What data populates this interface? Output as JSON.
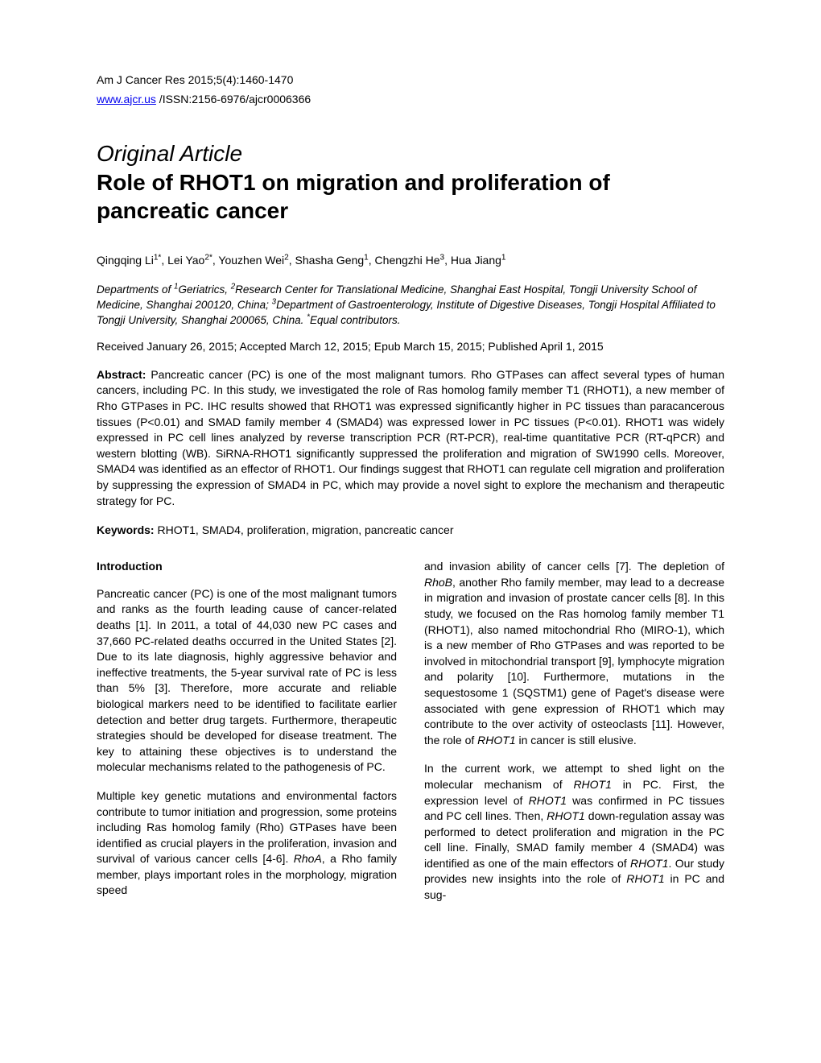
{
  "header": {
    "citation": "Am J Cancer Res 2015;5(4):1460-1470",
    "link_text": "www.ajcr.us",
    "link_suffix": " /ISSN:2156-6976/ajcr0006366"
  },
  "article": {
    "type": "Original Article",
    "title": "Role of RHOT1 on migration and proliferation of pancreatic cancer"
  },
  "affiliations": {
    "text_prefix": "Departments of ",
    "sup1": "1",
    "dept1": "Geriatrics, ",
    "sup2": "2",
    "dept2": "Research Center for Translational Medicine, Shanghai East Hospital, Tongji University School of Medicine, Shanghai 200120, China; ",
    "sup3": "3",
    "dept3": "Department of Gastroenterology, Institute of Digestive Diseases, Tongji Hospital Affiliated to Tongji University, Shanghai 200065, China. ",
    "sup_star": "*",
    "equal": "Equal contributors."
  },
  "dates": "Received January 26, 2015; Accepted March 12, 2015; Epub March 15, 2015; Published April 1, 2015",
  "abstract": {
    "label": "Abstract:",
    "text": " Pancreatic cancer (PC) is one of the most malignant tumors. Rho GTPases can affect several types of human cancers, including PC. In this study, we investigated the role of Ras homolog family member T1 (RHOT1), a new member of Rho GTPases in PC. IHC results showed that RHOT1 was expressed significantly higher in PC tissues than paracancerous tissues (P<0.01) and SMAD family member 4 (SMAD4) was expressed lower in PC tissues (P<0.01). RHOT1 was widely expressed in PC cell lines analyzed by reverse transcription PCR (RT-PCR), real-time quantitative PCR (RT-qPCR) and western blotting (WB). SiRNA-RHOT1 significantly suppressed the proliferation and migration of SW1990 cells. Moreover, SMAD4 was identified as an effector of RHOT1. Our findings suggest that RHOT1 can regulate cell migration and proliferation by suppressing the expression of SMAD4 in PC, which may provide a novel sight to explore the mechanism and therapeutic strategy for PC."
  },
  "keywords": {
    "label": "Keywords:",
    "text": " RHOT1, SMAD4, proliferation, migration, pancreatic cancer"
  },
  "body": {
    "intro_heading": "Introduction",
    "left_p1": "Pancreatic cancer (PC) is one of the most malignant tumors and ranks as the fourth leading cause of cancer-related deaths [1]. In 2011, a total of 44,030 new PC cases and 37,660 PC-related deaths occurred in the United States [2]. Due to its late diagnosis, highly aggressive behavior and ineffective treatments, the 5-year survival rate of PC is less than 5% [3]. Therefore, more accurate and reliable biological markers need to be identified to facilitate earlier detection and better drug targets. Furthermore, therapeutic strategies should be developed for disease treatment. The key to attaining these objectives is to understand the molecular mechanisms related to the pathogenesis of PC.",
    "left_p2_pre": "Multiple key genetic mutations and environmental factors contribute to tumor initiation and progression, some proteins including Ras homolog family (Rho) GTPases have been identified as crucial players in the proliferation, invasion and survival of various cancer cells [4-6]. ",
    "left_p2_rhoa": "RhoA",
    "left_p2_post": ", a Rho family member, plays important roles in the morphology, migration speed",
    "right_p1_pre": "and invasion ability of cancer cells [7]. The depletion of ",
    "right_p1_rhob": "RhoB",
    "right_p1_mid": ", another Rho family member, may lead to a decrease in migration and invasion of prostate cancer cells [8]. In this study, we focused on the Ras homolog family member T1 (RHOT1), also named mitochondrial Rho (MIRO-1), which is a new member of Rho GTPases and was reported to be involved in mitochondrial transport [9], lymphocyte migration and polarity [10]. Furthermore, mutations in the sequestosome 1 (SQSTM1) gene of Paget's disease were associated with gene expression of RHOT1 which may contribute to the over activity of osteoclasts [11]. However, the role of ",
    "right_p1_rhot1": "RHOT1",
    "right_p1_end": " in cancer is still elusive.",
    "right_p2_1": "In the current work, we attempt to shed light on the molecular mechanism of ",
    "right_p2_r1": "RHOT1",
    "right_p2_2": " in PC. First, the expression level of ",
    "right_p2_r2": "RHOT1",
    "right_p2_3": " was confirmed in PC tissues and PC cell lines. Then, ",
    "right_p2_r3": "RHOT1",
    "right_p2_4": " down-regulation assay was performed to detect proliferation and migration in the PC cell line. Finally, SMAD family member 4 (SMAD4) was identified as one of the main effectors of ",
    "right_p2_r4": "RHOT1",
    "right_p2_5": ". Our study provides new insights into the role of ",
    "right_p2_r5": "RHOT1",
    "right_p2_6": " in PC and sug-"
  },
  "authors": [
    {
      "name": "Qingqing Li",
      "sup": "1*"
    },
    {
      "name": "Lei Yao",
      "sup": "2*"
    },
    {
      "name": "Youzhen Wei",
      "sup": "2"
    },
    {
      "name": "Shasha Geng",
      "sup": "1"
    },
    {
      "name": "Chengzhi He",
      "sup": "3"
    },
    {
      "name": "Hua Jiang",
      "sup": "1"
    }
  ]
}
